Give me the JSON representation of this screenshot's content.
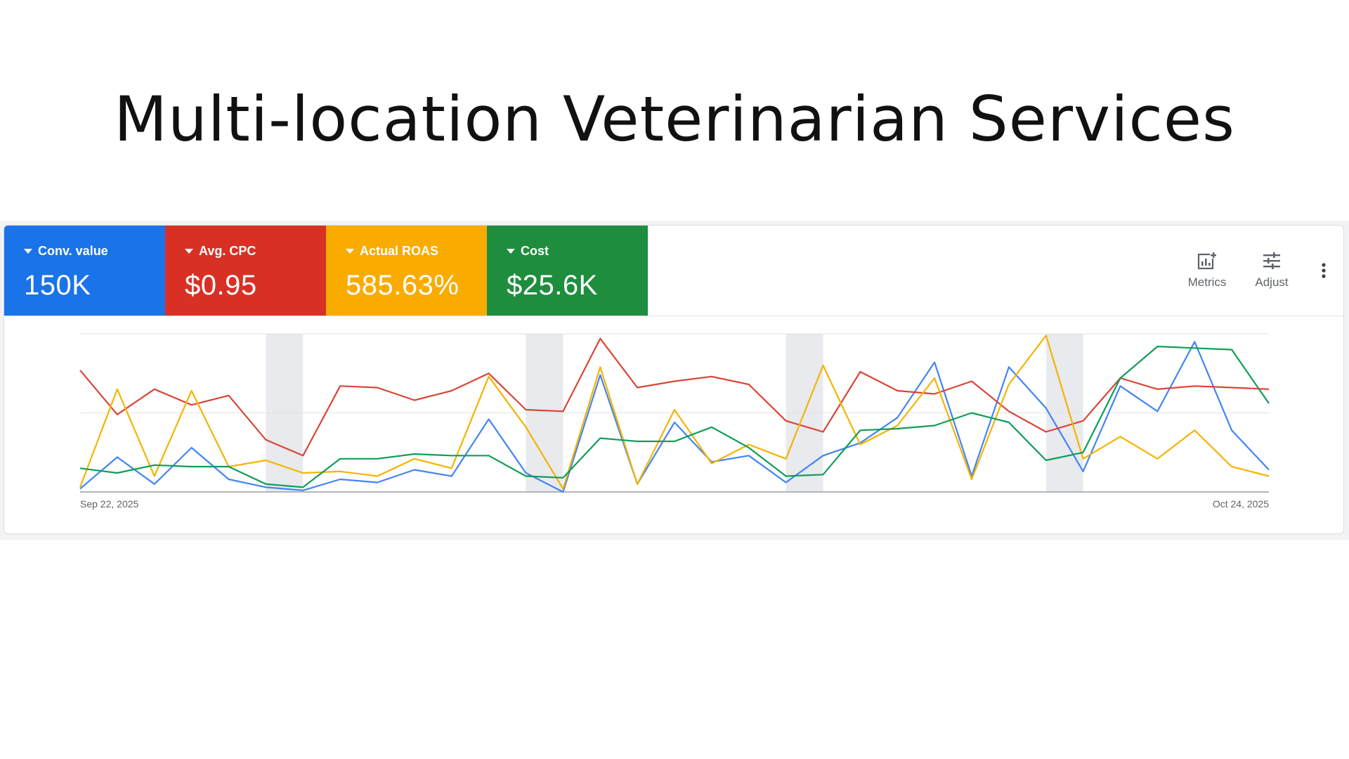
{
  "slide": {
    "title": "Multi-location Veterinarian Services"
  },
  "metrics": [
    {
      "label": "Conv. value",
      "value": "150K",
      "color": "#1a73e8"
    },
    {
      "label": "Avg. CPC",
      "value": "$0.95",
      "color": "#d93025"
    },
    {
      "label": "Actual ROAS",
      "value": "585.63%",
      "color": "#f9ab00"
    },
    {
      "label": "Cost",
      "value": "$25.6K",
      "color": "#1e8e3e"
    }
  ],
  "toolbar": {
    "metrics_label": "Metrics",
    "adjust_label": "Adjust",
    "metrics_icon": "bar-chart-add-icon",
    "adjust_icon": "tune-sliders-icon",
    "more_icon": "more-vert-icon"
  },
  "chart_data": {
    "type": "line",
    "x_start_label": "Sep 22, 2025",
    "x_end_label": "Oct 24, 2025",
    "x": [
      "2025-09-22",
      "2025-09-23",
      "2025-09-24",
      "2025-09-25",
      "2025-09-26",
      "2025-09-27",
      "2025-09-28",
      "2025-09-29",
      "2025-09-30",
      "2025-10-01",
      "2025-10-02",
      "2025-10-03",
      "2025-10-04",
      "2025-10-05",
      "2025-10-06",
      "2025-10-07",
      "2025-10-08",
      "2025-10-09",
      "2025-10-10",
      "2025-10-11",
      "2025-10-12",
      "2025-10-13",
      "2025-10-14",
      "2025-10-15",
      "2025-10-16",
      "2025-10-17",
      "2025-10-18",
      "2025-10-19",
      "2025-10-20",
      "2025-10-21",
      "2025-10-22",
      "2025-10-23",
      "2025-10-24"
    ],
    "shaded_ranges": [
      [
        "2025-09-27",
        "2025-09-28"
      ],
      [
        "2025-10-04",
        "2025-10-05"
      ],
      [
        "2025-10-11",
        "2025-10-12"
      ],
      [
        "2025-10-18",
        "2025-10-19"
      ]
    ],
    "y_normalized": true,
    "gridlines": 3,
    "series": [
      {
        "metric": "Conv. value",
        "color": "#4285f4",
        "values": [
          0.02,
          0.22,
          0.05,
          0.28,
          0.08,
          0.03,
          0.01,
          0.08,
          0.06,
          0.14,
          0.1,
          0.46,
          0.12,
          0.0,
          0.74,
          0.05,
          0.44,
          0.19,
          0.23,
          0.06,
          0.23,
          0.31,
          0.47,
          0.82,
          0.1,
          0.79,
          0.53,
          0.13,
          0.67,
          0.51,
          0.95,
          0.39,
          0.14
        ]
      },
      {
        "metric": "Avg. CPC",
        "color": "#db4437",
        "values": [
          0.77,
          0.49,
          0.65,
          0.55,
          0.61,
          0.33,
          0.23,
          0.67,
          0.66,
          0.58,
          0.64,
          0.75,
          0.52,
          0.51,
          0.97,
          0.66,
          0.7,
          0.73,
          0.68,
          0.45,
          0.38,
          0.76,
          0.64,
          0.62,
          0.7,
          0.51,
          0.38,
          0.45,
          0.72,
          0.65,
          0.67,
          0.66,
          0.65
        ]
      },
      {
        "metric": "Actual ROAS",
        "color": "#f4b400",
        "values": [
          0.03,
          0.65,
          0.1,
          0.64,
          0.16,
          0.2,
          0.12,
          0.13,
          0.1,
          0.21,
          0.15,
          0.73,
          0.41,
          0.02,
          0.79,
          0.05,
          0.52,
          0.18,
          0.3,
          0.21,
          0.8,
          0.3,
          0.42,
          0.72,
          0.08,
          0.68,
          0.99,
          0.21,
          0.35,
          0.21,
          0.39,
          0.16,
          0.1
        ]
      },
      {
        "metric": "Cost",
        "color": "#0f9d58",
        "values": [
          0.15,
          0.12,
          0.17,
          0.16,
          0.16,
          0.05,
          0.03,
          0.21,
          0.21,
          0.24,
          0.23,
          0.23,
          0.1,
          0.09,
          0.34,
          0.32,
          0.32,
          0.41,
          0.28,
          0.1,
          0.11,
          0.39,
          0.4,
          0.42,
          0.5,
          0.44,
          0.2,
          0.25,
          0.72,
          0.92,
          0.91,
          0.9,
          0.56
        ]
      }
    ]
  }
}
